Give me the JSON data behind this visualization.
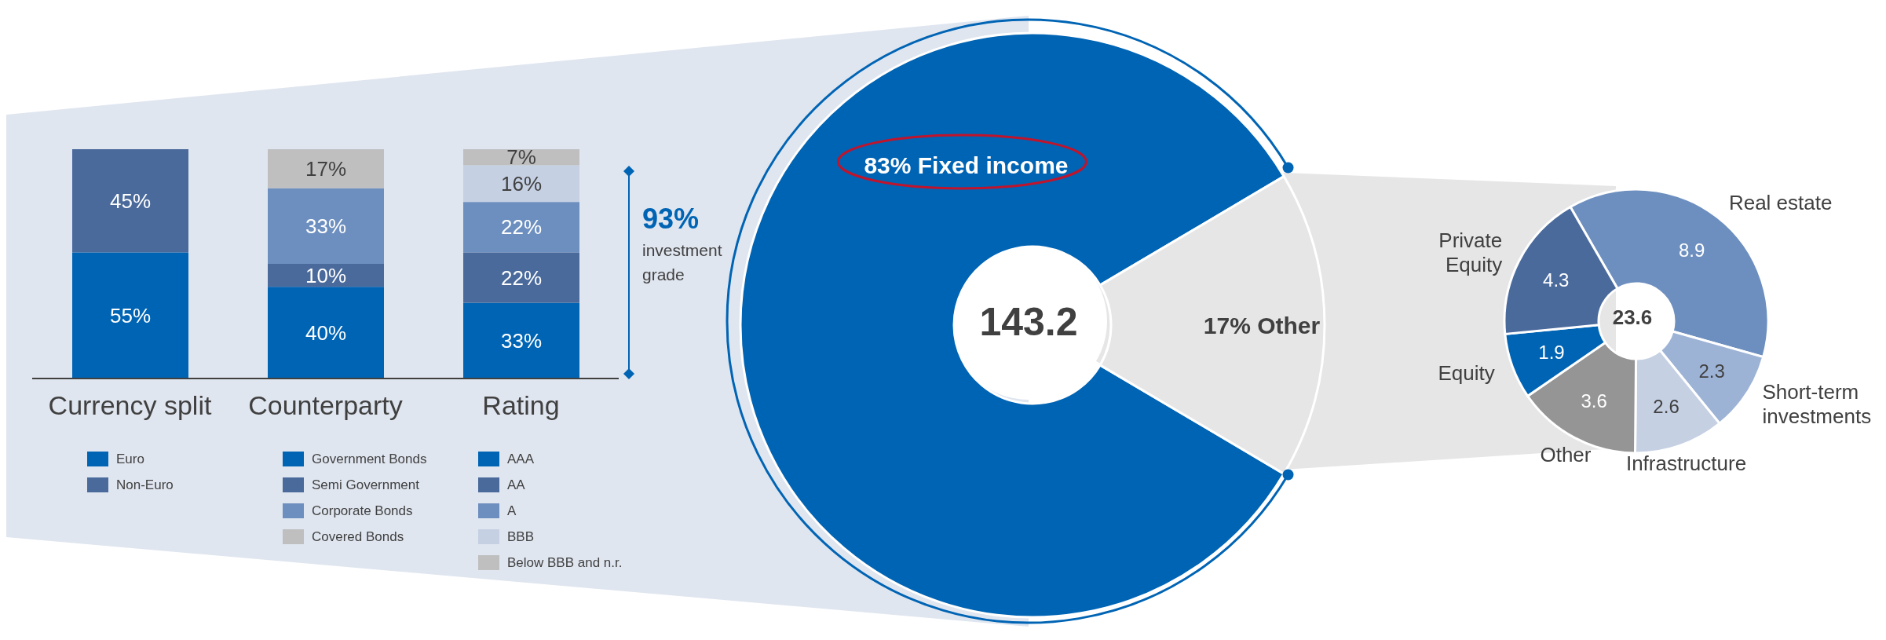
{
  "chart_data": [
    {
      "type": "bar",
      "stacked": true,
      "legend": "bottom",
      "categories": [
        "Currency split",
        "Counterparty",
        "Rating"
      ],
      "annotations": [
        "93%",
        "investment grade"
      ],
      "series": [
        {
          "name": "Euro",
          "color": "#0064b4",
          "values": [
            55,
            null,
            null
          ],
          "value_labels": [
            "55%",
            null,
            null
          ]
        },
        {
          "name": "Non-Euro",
          "color": "#4a6a9c",
          "values": [
            45,
            null,
            null
          ],
          "value_labels": [
            "45%",
            null,
            null
          ]
        },
        {
          "name": "Government Bonds",
          "color": "#0064b4",
          "values": [
            null,
            40,
            null
          ],
          "value_labels": [
            null,
            "40%",
            null
          ]
        },
        {
          "name": "Semi Government",
          "color": "#4a6a9c",
          "values": [
            null,
            10,
            null
          ],
          "value_labels": [
            null,
            "10%",
            null
          ]
        },
        {
          "name": "Corporate Bonds",
          "color": "#6d8fbf",
          "values": [
            null,
            33,
            null
          ],
          "value_labels": [
            null,
            "33%",
            null
          ]
        },
        {
          "name": "Covered Bonds",
          "color": "#bfbfbf",
          "values": [
            null,
            17,
            null
          ],
          "value_labels": [
            null,
            "17%",
            null
          ]
        },
        {
          "name": "AAA",
          "color": "#0064b4",
          "values": [
            null,
            null,
            33
          ],
          "value_labels": [
            null,
            null,
            "33%"
          ]
        },
        {
          "name": "AA",
          "color": "#4a6a9c",
          "values": [
            null,
            null,
            22
          ],
          "value_labels": [
            null,
            null,
            "22%"
          ]
        },
        {
          "name": "A",
          "color": "#6d8fbf",
          "values": [
            null,
            null,
            22
          ],
          "value_labels": [
            null,
            null,
            "22%"
          ]
        },
        {
          "name": "BBB",
          "color": "#c5d0e3",
          "values": [
            null,
            null,
            16
          ],
          "value_labels": [
            null,
            null,
            "16%"
          ]
        },
        {
          "name": "Below BBB and n.r.",
          "color": "#bfbfbf",
          "values": [
            null,
            null,
            7
          ],
          "value_labels": [
            null,
            null,
            "7%"
          ]
        }
      ]
    },
    {
      "type": "donut",
      "categories": [
        "Fixed income",
        "Other"
      ],
      "values": [
        83,
        17
      ],
      "colors": [
        "#0064b4",
        "#e6e6e6"
      ],
      "value_labels": [
        "83%",
        "17%"
      ],
      "annotations": [
        "143.2"
      ]
    },
    {
      "type": "donut",
      "categories": [
        "Real estate",
        "Short-term investments",
        "Infrastructure",
        "Other",
        "Equity",
        "Private Equity"
      ],
      "values": [
        8.9,
        2.3,
        2.6,
        3.6,
        1.9,
        4.3
      ],
      "colors": [
        "#6d8fbf",
        "#9db3d6",
        "#c5d0e3",
        "#959595",
        "#0064b4",
        "#4a6a9c"
      ],
      "data_labels": true,
      "annotations": [
        "23.6"
      ]
    }
  ]
}
